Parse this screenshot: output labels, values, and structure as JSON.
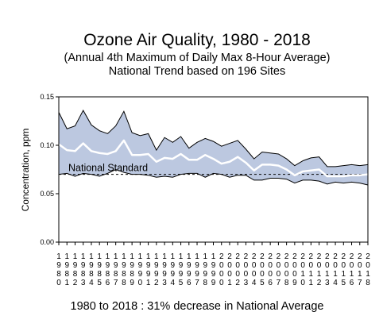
{
  "chart_data": {
    "type": "area",
    "title": "Ozone Air Quality, 1980 - 2018",
    "subtitle_lines": [
      "(Annual 4th Maximum of Daily Max 8-Hour Average)",
      "National Trend based on 196 Sites"
    ],
    "xlabel": "",
    "ylabel": "Concentration, ppm",
    "x": [
      1980,
      1981,
      1982,
      1983,
      1984,
      1985,
      1986,
      1987,
      1988,
      1989,
      1990,
      1991,
      1992,
      1993,
      1994,
      1995,
      1996,
      1997,
      1998,
      1999,
      2000,
      2001,
      2002,
      2003,
      2004,
      2005,
      2006,
      2007,
      2008,
      2009,
      2010,
      2011,
      2012,
      2013,
      2014,
      2015,
      2016,
      2017,
      2018
    ],
    "ylim": [
      0,
      0.15
    ],
    "yticks": [
      "0.00",
      "0.05",
      "0.10",
      "0.15"
    ],
    "series": [
      {
        "role": "upper-band",
        "values": [
          0.134,
          0.117,
          0.12,
          0.136,
          0.121,
          0.115,
          0.112,
          0.12,
          0.135,
          0.113,
          0.11,
          0.112,
          0.095,
          0.108,
          0.103,
          0.109,
          0.097,
          0.103,
          0.107,
          0.104,
          0.099,
          0.102,
          0.105,
          0.096,
          0.086,
          0.093,
          0.092,
          0.091,
          0.086,
          0.079,
          0.084,
          0.087,
          0.088,
          0.078,
          0.078,
          0.079,
          0.08,
          0.079,
          0.08
        ]
      },
      {
        "role": "average",
        "values": [
          0.101,
          0.095,
          0.094,
          0.102,
          0.094,
          0.092,
          0.091,
          0.094,
          0.105,
          0.09,
          0.09,
          0.091,
          0.083,
          0.087,
          0.086,
          0.091,
          0.085,
          0.085,
          0.09,
          0.086,
          0.081,
          0.083,
          0.088,
          0.082,
          0.074,
          0.08,
          0.08,
          0.079,
          0.075,
          0.069,
          0.073,
          0.074,
          0.075,
          0.068,
          0.068,
          0.068,
          0.069,
          0.069,
          0.07
        ]
      },
      {
        "role": "lower-band",
        "values": [
          0.07,
          0.071,
          0.068,
          0.071,
          0.07,
          0.068,
          0.071,
          0.075,
          0.072,
          0.07,
          0.07,
          0.069,
          0.067,
          0.068,
          0.067,
          0.07,
          0.071,
          0.071,
          0.067,
          0.071,
          0.07,
          0.067,
          0.069,
          0.069,
          0.064,
          0.064,
          0.066,
          0.066,
          0.065,
          0.061,
          0.064,
          0.064,
          0.063,
          0.06,
          0.062,
          0.061,
          0.062,
          0.061,
          0.059
        ]
      }
    ],
    "reference_line": {
      "label": "National Standard",
      "value": 0.07,
      "style": "dashed"
    },
    "footer": "1980 to 2018 :  31% decrease in National Average",
    "grid": false,
    "legend": "none",
    "colors": {
      "band": "#bcc8e0",
      "average": "#ffffff",
      "edges": "#000000",
      "standard": "#000000"
    }
  }
}
